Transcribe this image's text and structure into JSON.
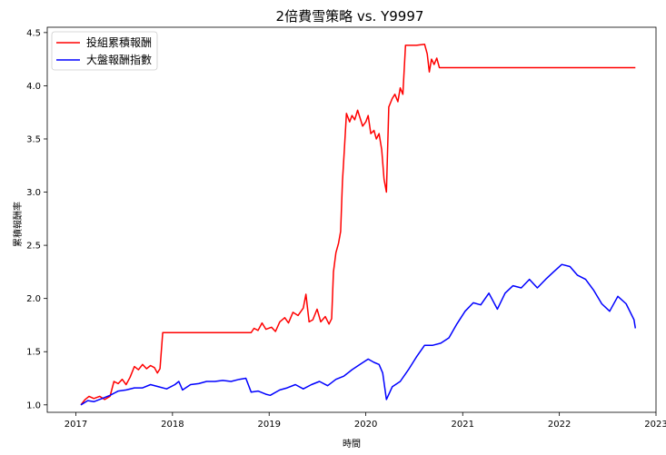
{
  "chart_data": {
    "type": "line",
    "title": "2倍費雪策略 vs. Y9997",
    "xlabel": "時間",
    "ylabel": "累積報酬率",
    "xlim": [
      "2016-09-15",
      "2023-01-01"
    ],
    "ylim": [
      0.93,
      4.55
    ],
    "xticks": [
      {
        "value": "2017-01-01",
        "label": "2017"
      },
      {
        "value": "2018-01-01",
        "label": "2018"
      },
      {
        "value": "2019-01-01",
        "label": "2019"
      },
      {
        "value": "2020-01-01",
        "label": "2020"
      },
      {
        "value": "2021-01-01",
        "label": "2021"
      },
      {
        "value": "2022-01-01",
        "label": "2022"
      },
      {
        "value": "2023-01-01",
        "label": "2023"
      }
    ],
    "yticks": [
      {
        "value": 1.0,
        "label": "1.0"
      },
      {
        "value": 1.5,
        "label": "1.5"
      },
      {
        "value": 2.0,
        "label": "2.0"
      },
      {
        "value": 2.5,
        "label": "2.5"
      },
      {
        "value": 3.0,
        "label": "3.0"
      },
      {
        "value": 3.5,
        "label": "3.5"
      },
      {
        "value": 4.0,
        "label": "4.0"
      },
      {
        "value": 4.5,
        "label": "4.5"
      }
    ],
    "grid": false,
    "legend_position": "top-left",
    "series": [
      {
        "name": "投組累積報酬",
        "color": "#ff0000",
        "points": [
          [
            "2017-01-20",
            1.0
          ],
          [
            "2017-02-05",
            1.05
          ],
          [
            "2017-02-20",
            1.08
          ],
          [
            "2017-03-10",
            1.06
          ],
          [
            "2017-04-01",
            1.08
          ],
          [
            "2017-04-20",
            1.05
          ],
          [
            "2017-05-10",
            1.08
          ],
          [
            "2017-05-25",
            1.22
          ],
          [
            "2017-06-10",
            1.2
          ],
          [
            "2017-06-25",
            1.24
          ],
          [
            "2017-07-10",
            1.19
          ],
          [
            "2017-07-25",
            1.26
          ],
          [
            "2017-08-10",
            1.36
          ],
          [
            "2017-08-25",
            1.33
          ],
          [
            "2017-09-10",
            1.38
          ],
          [
            "2017-09-25",
            1.34
          ],
          [
            "2017-10-10",
            1.37
          ],
          [
            "2017-10-25",
            1.35
          ],
          [
            "2017-11-05",
            1.3
          ],
          [
            "2017-11-15",
            1.34
          ],
          [
            "2017-11-25",
            1.68
          ],
          [
            "2018-06-01",
            1.68
          ],
          [
            "2018-10-25",
            1.68
          ],
          [
            "2018-11-05",
            1.72
          ],
          [
            "2018-11-20",
            1.7
          ],
          [
            "2018-12-05",
            1.77
          ],
          [
            "2018-12-20",
            1.71
          ],
          [
            "2019-01-10",
            1.73
          ],
          [
            "2019-01-25",
            1.69
          ],
          [
            "2019-02-10",
            1.78
          ],
          [
            "2019-03-01",
            1.82
          ],
          [
            "2019-03-15",
            1.77
          ],
          [
            "2019-04-01",
            1.87
          ],
          [
            "2019-04-20",
            1.84
          ],
          [
            "2019-05-10",
            1.91
          ],
          [
            "2019-05-20",
            2.04
          ],
          [
            "2019-06-01",
            1.78
          ],
          [
            "2019-06-15",
            1.8
          ],
          [
            "2019-07-01",
            1.9
          ],
          [
            "2019-07-15",
            1.78
          ],
          [
            "2019-08-01",
            1.83
          ],
          [
            "2019-08-15",
            1.76
          ],
          [
            "2019-08-25",
            1.81
          ],
          [
            "2019-09-01",
            2.25
          ],
          [
            "2019-09-10",
            2.43
          ],
          [
            "2019-09-20",
            2.52
          ],
          [
            "2019-09-28",
            2.63
          ],
          [
            "2019-10-05",
            3.1
          ],
          [
            "2019-10-12",
            3.4
          ],
          [
            "2019-10-20",
            3.74
          ],
          [
            "2019-11-01",
            3.66
          ],
          [
            "2019-11-10",
            3.72
          ],
          [
            "2019-11-20",
            3.68
          ],
          [
            "2019-12-01",
            3.77
          ],
          [
            "2019-12-10",
            3.7
          ],
          [
            "2019-12-20",
            3.62
          ],
          [
            "2020-01-01",
            3.66
          ],
          [
            "2020-01-10",
            3.72
          ],
          [
            "2020-01-20",
            3.55
          ],
          [
            "2020-02-01",
            3.58
          ],
          [
            "2020-02-10",
            3.5
          ],
          [
            "2020-02-20",
            3.55
          ],
          [
            "2020-03-01",
            3.4
          ],
          [
            "2020-03-10",
            3.12
          ],
          [
            "2020-03-19",
            3.0
          ],
          [
            "2020-03-28",
            3.8
          ],
          [
            "2020-04-10",
            3.88
          ],
          [
            "2020-04-20",
            3.92
          ],
          [
            "2020-05-01",
            3.85
          ],
          [
            "2020-05-10",
            3.98
          ],
          [
            "2020-05-20",
            3.92
          ],
          [
            "2020-05-30",
            4.38
          ],
          [
            "2020-07-10",
            4.38
          ],
          [
            "2020-08-10",
            4.39
          ],
          [
            "2020-08-20",
            4.3
          ],
          [
            "2020-08-28",
            4.13
          ],
          [
            "2020-09-05",
            4.25
          ],
          [
            "2020-09-15",
            4.2
          ],
          [
            "2020-09-25",
            4.26
          ],
          [
            "2020-10-05",
            4.17
          ],
          [
            "2021-06-01",
            4.17
          ],
          [
            "2022-01-01",
            4.17
          ],
          [
            "2022-10-15",
            4.17
          ]
        ]
      },
      {
        "name": "大盤報酬指數",
        "color": "#0000ff",
        "points": [
          [
            "2017-01-20",
            1.0
          ],
          [
            "2017-02-15",
            1.04
          ],
          [
            "2017-03-10",
            1.03
          ],
          [
            "2017-04-10",
            1.06
          ],
          [
            "2017-05-10",
            1.09
          ],
          [
            "2017-06-10",
            1.13
          ],
          [
            "2017-07-10",
            1.14
          ],
          [
            "2017-08-10",
            1.16
          ],
          [
            "2017-09-10",
            1.16
          ],
          [
            "2017-10-10",
            1.19
          ],
          [
            "2017-11-10",
            1.17
          ],
          [
            "2017-12-10",
            1.15
          ],
          [
            "2018-01-10",
            1.19
          ],
          [
            "2018-01-25",
            1.22
          ],
          [
            "2018-02-08",
            1.14
          ],
          [
            "2018-03-10",
            1.19
          ],
          [
            "2018-04-10",
            1.2
          ],
          [
            "2018-05-10",
            1.22
          ],
          [
            "2018-06-10",
            1.22
          ],
          [
            "2018-07-10",
            1.23
          ],
          [
            "2018-08-10",
            1.22
          ],
          [
            "2018-09-10",
            1.24
          ],
          [
            "2018-10-05",
            1.25
          ],
          [
            "2018-10-25",
            1.12
          ],
          [
            "2018-11-20",
            1.13
          ],
          [
            "2018-12-20",
            1.1
          ],
          [
            "2019-01-05",
            1.09
          ],
          [
            "2019-02-10",
            1.14
          ],
          [
            "2019-03-10",
            1.16
          ],
          [
            "2019-04-10",
            1.19
          ],
          [
            "2019-05-10",
            1.15
          ],
          [
            "2019-06-10",
            1.19
          ],
          [
            "2019-07-10",
            1.22
          ],
          [
            "2019-08-10",
            1.18
          ],
          [
            "2019-09-10",
            1.24
          ],
          [
            "2019-10-10",
            1.27
          ],
          [
            "2019-11-10",
            1.33
          ],
          [
            "2019-12-10",
            1.38
          ],
          [
            "2020-01-10",
            1.43
          ],
          [
            "2020-02-01",
            1.4
          ],
          [
            "2020-02-20",
            1.38
          ],
          [
            "2020-03-05",
            1.3
          ],
          [
            "2020-03-19",
            1.05
          ],
          [
            "2020-04-10",
            1.17
          ],
          [
            "2020-05-10",
            1.22
          ],
          [
            "2020-06-10",
            1.33
          ],
          [
            "2020-07-10",
            1.45
          ],
          [
            "2020-08-10",
            1.56
          ],
          [
            "2020-09-10",
            1.56
          ],
          [
            "2020-10-10",
            1.58
          ],
          [
            "2020-11-10",
            1.63
          ],
          [
            "2020-12-10",
            1.76
          ],
          [
            "2021-01-10",
            1.88
          ],
          [
            "2021-02-10",
            1.96
          ],
          [
            "2021-03-10",
            1.94
          ],
          [
            "2021-04-10",
            2.05
          ],
          [
            "2021-05-12",
            1.9
          ],
          [
            "2021-06-10",
            2.05
          ],
          [
            "2021-07-10",
            2.12
          ],
          [
            "2021-08-10",
            2.1
          ],
          [
            "2021-09-10",
            2.18
          ],
          [
            "2021-10-10",
            2.1
          ],
          [
            "2021-11-10",
            2.18
          ],
          [
            "2021-12-10",
            2.25
          ],
          [
            "2022-01-10",
            2.32
          ],
          [
            "2022-02-10",
            2.3
          ],
          [
            "2022-03-10",
            2.22
          ],
          [
            "2022-04-10",
            2.18
          ],
          [
            "2022-05-10",
            2.08
          ],
          [
            "2022-06-10",
            1.95
          ],
          [
            "2022-07-10",
            1.88
          ],
          [
            "2022-08-10",
            2.02
          ],
          [
            "2022-09-10",
            1.95
          ],
          [
            "2022-10-10",
            1.8
          ],
          [
            "2022-10-15",
            1.72
          ]
        ]
      }
    ]
  }
}
